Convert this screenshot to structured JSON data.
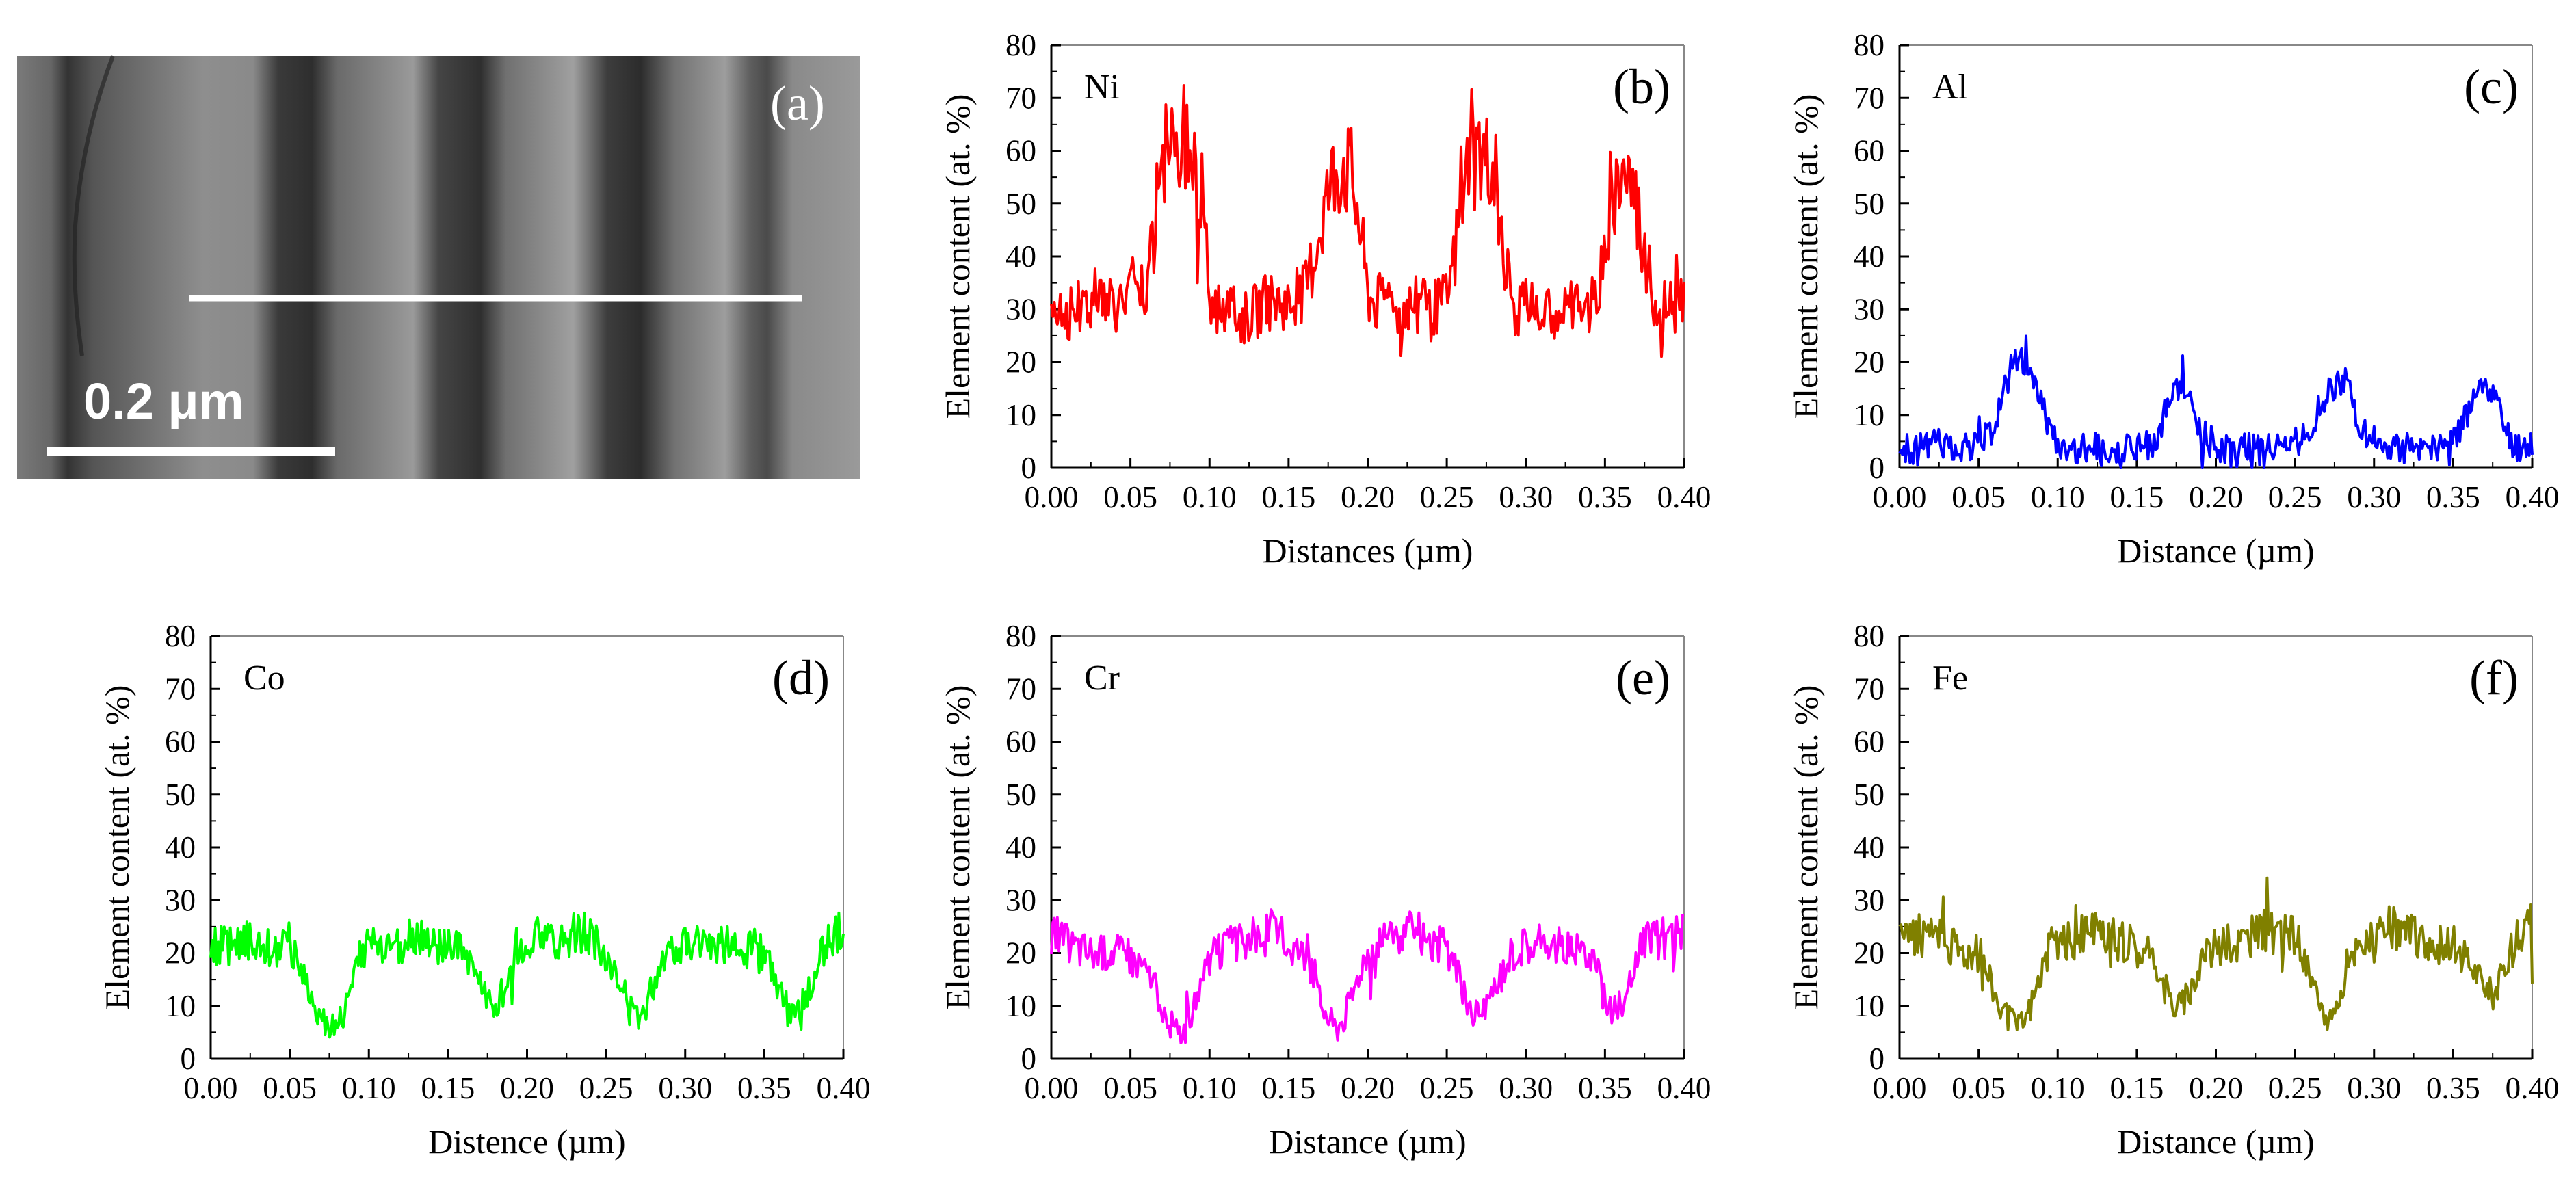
{
  "figure": {
    "micrograph": {
      "label": "(a)",
      "scale_bar": "0.2 μm",
      "profile_line": "line-scan"
    }
  },
  "colors": {
    "Ni": "#ff0000",
    "Al": "#0000ff",
    "Co": "#00ff00",
    "Cr": "#ff00ff",
    "Fe": "#808000"
  },
  "chart_data": [
    {
      "type": "line",
      "panel": "(b)",
      "element": "Ni",
      "xlabel": "Distances (µm)",
      "ylabel": "Element content (at. %)",
      "xlim": [
        0,
        0.4
      ],
      "ylim": [
        0,
        80
      ],
      "xticks": [
        "0.00",
        "0.05",
        "0.10",
        "0.15",
        "0.20",
        "0.25",
        "0.30",
        "0.35",
        "0.40"
      ],
      "yticks": [
        "0",
        "10",
        "20",
        "30",
        "40",
        "50",
        "60",
        "70",
        "80"
      ],
      "grid": false,
      "series": [
        {
          "color": "#ff0000",
          "x": [
            0,
            0.01,
            0.02,
            0.03,
            0.04,
            0.05,
            0.06,
            0.065,
            0.07,
            0.075,
            0.08,
            0.085,
            0.09,
            0.095,
            0.1,
            0.105,
            0.11,
            0.12,
            0.13,
            0.14,
            0.15,
            0.16,
            0.165,
            0.17,
            0.175,
            0.18,
            0.185,
            0.19,
            0.195,
            0.2,
            0.205,
            0.21,
            0.22,
            0.23,
            0.24,
            0.25,
            0.255,
            0.26,
            0.265,
            0.27,
            0.275,
            0.28,
            0.285,
            0.29,
            0.295,
            0.3,
            0.31,
            0.32,
            0.33,
            0.34,
            0.345,
            0.35,
            0.355,
            0.36,
            0.365,
            0.37,
            0.375,
            0.38,
            0.385,
            0.39,
            0.4
          ],
          "y": [
            32,
            29,
            31,
            33,
            31,
            34,
            32,
            45,
            57,
            60,
            62,
            64,
            61,
            52,
            32,
            30,
            31,
            28,
            30,
            32,
            31,
            33,
            39,
            46,
            52,
            57,
            58,
            55,
            46,
            33,
            31,
            32,
            30,
            31,
            30,
            32,
            40,
            52,
            58,
            60,
            58,
            57,
            44,
            32,
            30,
            31,
            29,
            30,
            31,
            30,
            33,
            40,
            50,
            57,
            56,
            50,
            40,
            33,
            30,
            32,
            30
          ]
        }
      ]
    },
    {
      "type": "line",
      "panel": "(c)",
      "element": "Al",
      "xlabel": "Distance (µm)",
      "ylabel": "Element content (at. %)",
      "xlim": [
        0,
        0.4
      ],
      "ylim": [
        0,
        80
      ],
      "xticks": [
        "0.00",
        "0.05",
        "0.10",
        "0.15",
        "0.20",
        "0.25",
        "0.30",
        "0.35",
        "0.40"
      ],
      "yticks": [
        "0",
        "10",
        "20",
        "30",
        "40",
        "50",
        "60",
        "70",
        "80"
      ],
      "grid": false,
      "series": [
        {
          "color": "#0000ff",
          "x": [
            0,
            0.01,
            0.02,
            0.03,
            0.04,
            0.05,
            0.055,
            0.06,
            0.065,
            0.07,
            0.075,
            0.08,
            0.085,
            0.09,
            0.095,
            0.1,
            0.11,
            0.12,
            0.13,
            0.14,
            0.15,
            0.16,
            0.165,
            0.17,
            0.175,
            0.18,
            0.185,
            0.19,
            0.2,
            0.21,
            0.22,
            0.23,
            0.24,
            0.25,
            0.26,
            0.265,
            0.27,
            0.275,
            0.28,
            0.285,
            0.29,
            0.3,
            0.31,
            0.32,
            0.33,
            0.34,
            0.35,
            0.355,
            0.36,
            0.365,
            0.37,
            0.375,
            0.38,
            0.385,
            0.39,
            0.4
          ],
          "y": [
            4,
            3,
            5,
            4,
            4,
            5,
            6,
            8,
            14,
            18,
            20,
            19,
            17,
            12,
            6,
            4,
            3,
            4,
            3,
            4,
            4,
            4,
            8,
            14,
            15,
            14,
            12,
            7,
            4,
            3,
            4,
            3,
            4,
            5,
            7,
            11,
            14,
            16,
            17,
            15,
            8,
            4,
            3,
            4,
            3,
            4,
            5,
            7,
            11,
            14,
            16,
            15,
            10,
            6,
            4,
            5
          ]
        }
      ]
    },
    {
      "type": "line",
      "panel": "(d)",
      "element": "Co",
      "xlabel": "Distence (µm)",
      "ylabel": "Element content (at. %)",
      "xlim": [
        0,
        0.4
      ],
      "ylim": [
        0,
        80
      ],
      "xticks": [
        "0.00",
        "0.05",
        "0.10",
        "0.15",
        "0.20",
        "0.25",
        "0.30",
        "0.35",
        "0.40"
      ],
      "yticks": [
        "0",
        "10",
        "20",
        "30",
        "40",
        "50",
        "60",
        "70",
        "80"
      ],
      "grid": false,
      "series": [
        {
          "color": "#00ff00",
          "x": [
            0,
            0.01,
            0.02,
            0.03,
            0.04,
            0.05,
            0.055,
            0.06,
            0.065,
            0.07,
            0.075,
            0.08,
            0.085,
            0.09,
            0.095,
            0.1,
            0.11,
            0.12,
            0.13,
            0.14,
            0.15,
            0.16,
            0.165,
            0.17,
            0.175,
            0.18,
            0.185,
            0.19,
            0.195,
            0.2,
            0.21,
            0.22,
            0.23,
            0.24,
            0.25,
            0.255,
            0.26,
            0.265,
            0.27,
            0.275,
            0.28,
            0.285,
            0.29,
            0.3,
            0.31,
            0.32,
            0.33,
            0.34,
            0.35,
            0.355,
            0.36,
            0.365,
            0.37,
            0.375,
            0.38,
            0.385,
            0.39,
            0.4
          ],
          "y": [
            22,
            21,
            23,
            22,
            21,
            22,
            19,
            15,
            10,
            8,
            6,
            7,
            9,
            14,
            20,
            22,
            21,
            22,
            23,
            22,
            21,
            20,
            18,
            14,
            11,
            10,
            13,
            17,
            21,
            22,
            23,
            22,
            24,
            23,
            20,
            16,
            12,
            9,
            8,
            10,
            14,
            19,
            21,
            22,
            23,
            22,
            21,
            22,
            20,
            16,
            12,
            9,
            8,
            11,
            15,
            19,
            22,
            24
          ]
        }
      ]
    },
    {
      "type": "line",
      "panel": "(e)",
      "element": "Cr",
      "xlabel": "Distance (µm)",
      "ylabel": "Element content (at. %)",
      "xlim": [
        0,
        0.4
      ],
      "ylim": [
        0,
        80
      ],
      "xticks": [
        "0.00",
        "0.05",
        "0.10",
        "0.15",
        "0.20",
        "0.25",
        "0.30",
        "0.35",
        "0.40"
      ],
      "yticks": [
        "0",
        "10",
        "20",
        "30",
        "40",
        "50",
        "60",
        "70",
        "80"
      ],
      "grid": false,
      "series": [
        {
          "color": "#ff00ff",
          "x": [
            0,
            0.01,
            0.02,
            0.03,
            0.04,
            0.05,
            0.06,
            0.065,
            0.07,
            0.075,
            0.08,
            0.085,
            0.09,
            0.095,
            0.1,
            0.11,
            0.12,
            0.13,
            0.14,
            0.15,
            0.16,
            0.165,
            0.17,
            0.175,
            0.18,
            0.185,
            0.19,
            0.195,
            0.2,
            0.21,
            0.22,
            0.23,
            0.24,
            0.25,
            0.255,
            0.26,
            0.265,
            0.27,
            0.275,
            0.28,
            0.29,
            0.3,
            0.31,
            0.32,
            0.33,
            0.34,
            0.345,
            0.35,
            0.355,
            0.36,
            0.365,
            0.37,
            0.375,
            0.38,
            0.39,
            0.4
          ],
          "y": [
            24,
            22,
            21,
            20,
            21,
            19,
            18,
            14,
            10,
            7,
            5,
            6,
            9,
            14,
            19,
            21,
            22,
            23,
            24,
            22,
            20,
            16,
            11,
            8,
            6,
            8,
            12,
            17,
            21,
            22,
            23,
            24,
            22,
            21,
            18,
            13,
            10,
            8,
            9,
            13,
            20,
            22,
            21,
            22,
            21,
            20,
            17,
            12,
            9,
            10,
            14,
            19,
            22,
            23,
            22,
            24
          ]
        }
      ]
    },
    {
      "type": "line",
      "panel": "(f)",
      "element": "Fe",
      "xlabel": "Distance (µm)",
      "ylabel": "Element content (at. %)",
      "xlim": [
        0,
        0.4
      ],
      "ylim": [
        0,
        80
      ],
      "xticks": [
        "0.00",
        "0.05",
        "0.10",
        "0.15",
        "0.20",
        "0.25",
        "0.30",
        "0.35",
        "0.40"
      ],
      "yticks": [
        "0",
        "10",
        "20",
        "30",
        "40",
        "50",
        "60",
        "70",
        "80"
      ],
      "grid": false,
      "series": [
        {
          "color": "#808000",
          "x": [
            0,
            0.01,
            0.02,
            0.03,
            0.04,
            0.05,
            0.055,
            0.06,
            0.065,
            0.07,
            0.075,
            0.08,
            0.085,
            0.09,
            0.095,
            0.1,
            0.11,
            0.12,
            0.13,
            0.14,
            0.15,
            0.16,
            0.165,
            0.17,
            0.175,
            0.18,
            0.185,
            0.19,
            0.195,
            0.2,
            0.21,
            0.22,
            0.23,
            0.24,
            0.25,
            0.255,
            0.26,
            0.265,
            0.27,
            0.275,
            0.28,
            0.285,
            0.29,
            0.3,
            0.31,
            0.32,
            0.33,
            0.34,
            0.35,
            0.36,
            0.37,
            0.375,
            0.38,
            0.385,
            0.39,
            0.4
          ],
          "y": [
            22,
            24,
            23,
            22,
            21,
            20,
            17,
            13,
            9,
            7,
            6,
            8,
            12,
            17,
            21,
            23,
            22,
            24,
            23,
            22,
            21,
            19,
            15,
            12,
            10,
            11,
            14,
            18,
            20,
            21,
            22,
            23,
            24,
            23,
            24,
            20,
            15,
            10,
            8,
            9,
            13,
            18,
            21,
            22,
            25,
            24,
            23,
            22,
            21,
            18,
            14,
            12,
            15,
            20,
            24,
            25
          ]
        }
      ]
    }
  ]
}
